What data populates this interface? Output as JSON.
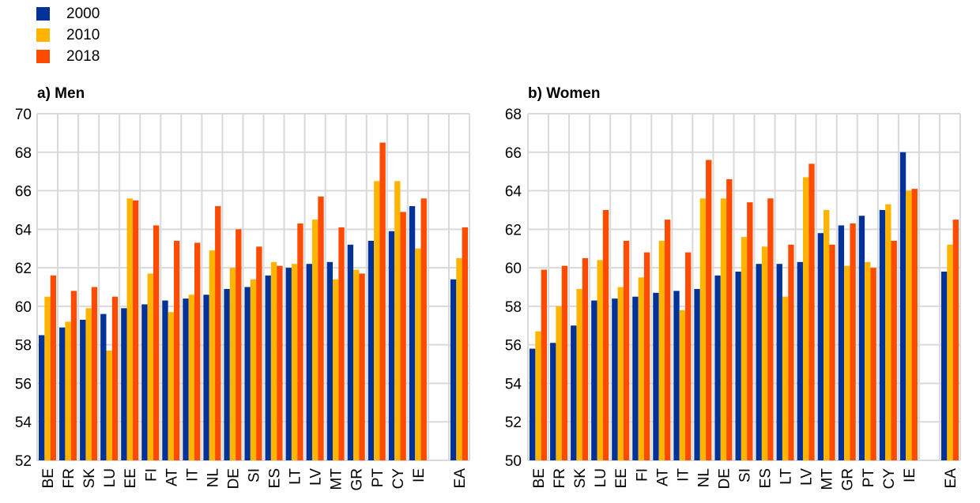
{
  "legend": [
    {
      "label": "2000",
      "color": "#003299"
    },
    {
      "label": "2010",
      "color": "#FFB400"
    },
    {
      "label": "2018",
      "color": "#FF4B00"
    }
  ],
  "chart_data": [
    {
      "type": "bar",
      "title": "a) Men",
      "xlabel": "",
      "ylabel": "",
      "ylim": [
        52,
        70
      ],
      "yticks": [
        "52",
        "54",
        "56",
        "58",
        "60",
        "62",
        "64",
        "66",
        "68",
        "70"
      ],
      "grid": true,
      "legend_position": "top-left",
      "categories": [
        "BE",
        "FR",
        "SK",
        "LU",
        "EE",
        "FI",
        "AT",
        "IT",
        "NL",
        "DE",
        "SI",
        "ES",
        "LT",
        "LV",
        "MT",
        "GR",
        "PT",
        "CY",
        "IE",
        "",
        "EA"
      ],
      "series": [
        {
          "name": "2000",
          "values": [
            58.5,
            58.9,
            59.3,
            59.6,
            59.9,
            60.1,
            60.3,
            60.4,
            60.6,
            60.9,
            61.0,
            61.6,
            62.0,
            62.2,
            62.3,
            63.2,
            63.4,
            63.9,
            65.2,
            null,
            61.4
          ]
        },
        {
          "name": "2010",
          "values": [
            60.5,
            59.2,
            59.9,
            57.7,
            65.6,
            61.7,
            59.7,
            60.6,
            62.9,
            62.0,
            61.4,
            62.3,
            62.2,
            64.5,
            61.4,
            61.9,
            66.5,
            66.5,
            63.0,
            null,
            62.5
          ]
        },
        {
          "name": "2018",
          "values": [
            61.6,
            60.8,
            61.0,
            60.5,
            65.5,
            64.2,
            63.4,
            63.3,
            65.2,
            64.0,
            63.1,
            62.1,
            64.3,
            65.7,
            64.1,
            61.7,
            68.5,
            64.9,
            65.6,
            null,
            64.1
          ]
        }
      ]
    },
    {
      "type": "bar",
      "title": "b) Women",
      "xlabel": "",
      "ylabel": "",
      "ylim": [
        50,
        68
      ],
      "yticks": [
        "50",
        "52",
        "54",
        "56",
        "58",
        "60",
        "62",
        "64",
        "66",
        "68"
      ],
      "grid": true,
      "legend_position": "top-left",
      "categories": [
        "BE",
        "FR",
        "SK",
        "LU",
        "EE",
        "FI",
        "AT",
        "IT",
        "NL",
        "DE",
        "SI",
        "ES",
        "LT",
        "LV",
        "MT",
        "GR",
        "PT",
        "CY",
        "IE",
        "",
        "EA"
      ],
      "series": [
        {
          "name": "2000",
          "values": [
            55.8,
            56.1,
            57.0,
            58.3,
            58.4,
            58.5,
            58.7,
            58.8,
            58.9,
            59.6,
            59.8,
            60.2,
            60.2,
            60.3,
            61.8,
            62.2,
            62.7,
            63.0,
            66.0,
            null,
            59.8
          ]
        },
        {
          "name": "2010",
          "values": [
            56.7,
            58.0,
            58.9,
            60.4,
            59.0,
            59.5,
            61.4,
            57.8,
            63.6,
            63.6,
            61.6,
            61.1,
            58.5,
            64.7,
            63.0,
            60.1,
            60.3,
            63.3,
            64.0,
            null,
            61.2
          ]
        },
        {
          "name": "2018",
          "values": [
            59.9,
            60.1,
            60.5,
            63.0,
            61.4,
            60.8,
            62.5,
            60.8,
            65.6,
            64.6,
            63.4,
            63.6,
            61.2,
            65.4,
            61.2,
            62.3,
            60.0,
            61.4,
            64.1,
            null,
            62.5
          ]
        }
      ]
    }
  ]
}
